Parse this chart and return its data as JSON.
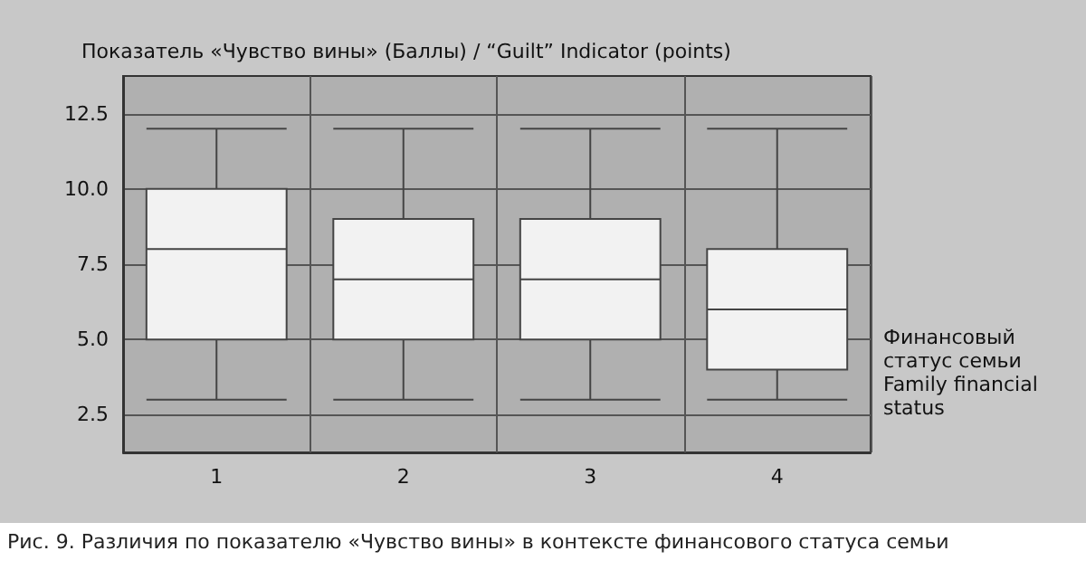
{
  "chart_data": {
    "type": "box",
    "ylabel": "Показатель «Чувство вины» (Баллы) / “Guilt” Indicator (points)",
    "xlabel": "Финансовый\nстатус семьи\nFamily financial\nstatus",
    "annotations": [
      "Рис. 9. Различия по показателю «Чувство вины» в контексте финансового статуса семьи"
    ],
    "categories": [
      "1",
      "2",
      "3",
      "4"
    ],
    "boxes": [
      {
        "low": 3,
        "q1": 5,
        "median": 8,
        "q3": 10,
        "high": 12
      },
      {
        "low": 3,
        "q1": 5,
        "median": 7,
        "q3": 9,
        "high": 12
      },
      {
        "low": 3,
        "q1": 5,
        "median": 7,
        "q3": 9,
        "high": 12
      },
      {
        "low": 3,
        "q1": 4,
        "median": 6,
        "q3": 8,
        "high": 12
      }
    ],
    "color": "#f2f2f2",
    "ylim": [
      1.25,
      13.75
    ],
    "yticks": [
      2.5,
      {
        "value": 5,
        "label": "5.0"
      },
      7.5,
      {
        "value": 10,
        "label": "10.0"
      },
      12.5
    ],
    "grid": true
  }
}
